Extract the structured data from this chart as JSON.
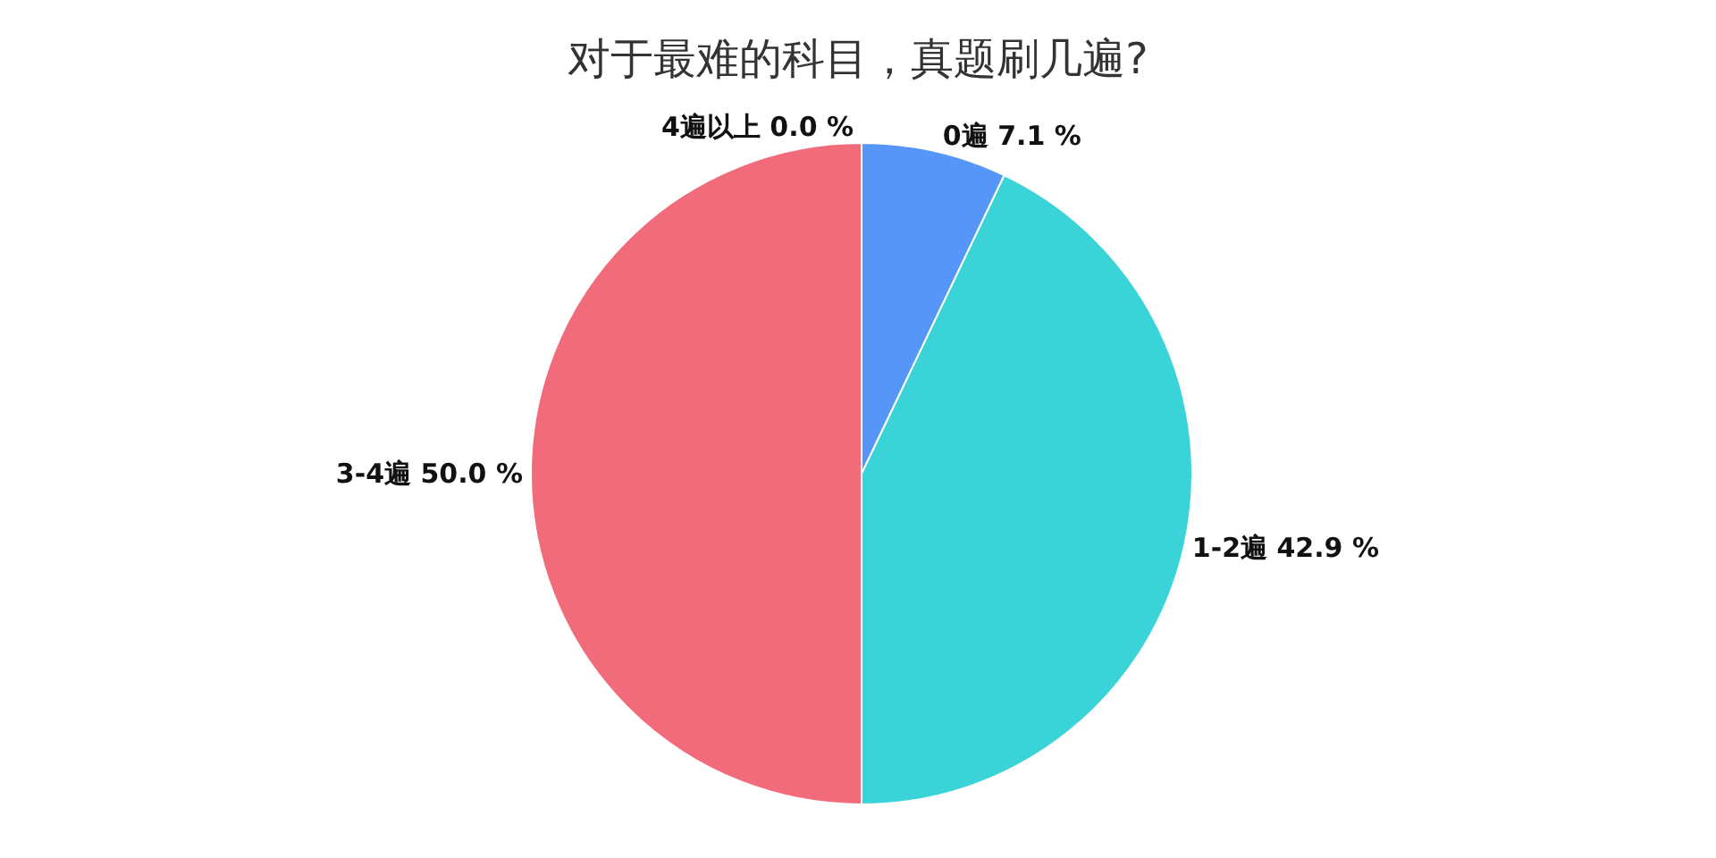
{
  "chart_data": {
    "type": "pie",
    "title": "对于最难的科目，真题刷几遍?",
    "categories": [
      "0遍",
      "1-2遍",
      "3-4遍",
      "4遍以上"
    ],
    "values": [
      7.1,
      42.9,
      50.0,
      0.0
    ],
    "value_labels": [
      "7.1 %",
      "42.9 %",
      "50.0 %",
      "0.0 %"
    ],
    "colors": [
      "#5596f8",
      "#3ad3d8",
      "#f26b7a",
      "#a0765a"
    ],
    "legend": false
  }
}
